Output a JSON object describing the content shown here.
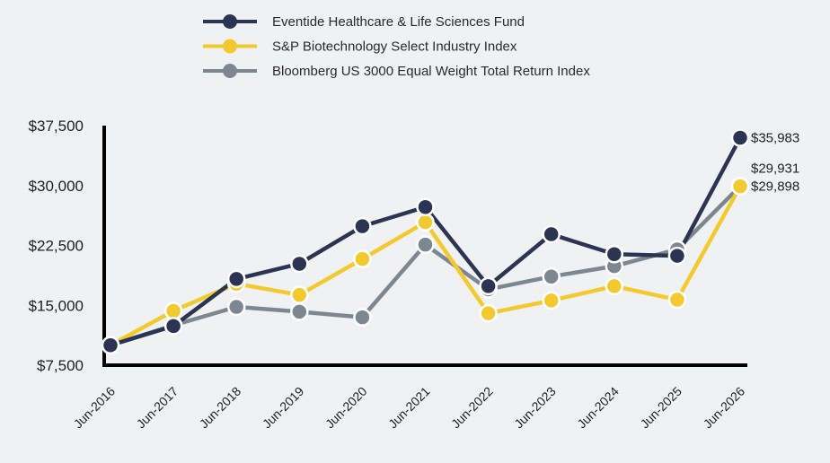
{
  "chart_data": {
    "type": "line",
    "title": "",
    "xlabel": "",
    "ylabel": "",
    "x": [
      "Jun-2016",
      "Jun-2017",
      "Jun-2018",
      "Jun-2019",
      "Jun-2020",
      "Jun-2021",
      "Jun-2022",
      "Jun-2023",
      "Jun-2024",
      "Jun-2025",
      "Jun-2026"
    ],
    "y_ticks": [
      "$7,500",
      "$15,000",
      "$22,500",
      "$30,000",
      "$37,500"
    ],
    "y_tick_values": [
      7500,
      15000,
      22500,
      30000,
      37500
    ],
    "ylim": [
      7500,
      37500
    ],
    "grid": false,
    "legend_position": "top-left",
    "series": [
      {
        "name": "Eventide Healthcare & Life Sciences Fund",
        "color": "#2b3452",
        "values": [
          10000,
          12400,
          18300,
          20200,
          24900,
          27300,
          17400,
          23900,
          21400,
          21200,
          35983
        ],
        "end_label": "$35,983"
      },
      {
        "name": "S&P Biotechnology Select Industry Index",
        "color": "#f2ca30",
        "values": [
          10000,
          14300,
          17700,
          16300,
          20800,
          25400,
          14000,
          15600,
          17400,
          15700,
          29898
        ],
        "end_label": "$29,898"
      },
      {
        "name": "Bloomberg US 3000 Equal Weight Total Return Index",
        "color": "#7c8791",
        "values": [
          10000,
          12500,
          14800,
          14200,
          13500,
          22600,
          17000,
          18600,
          19900,
          22000,
          29931
        ],
        "end_label": "$29,931"
      }
    ]
  }
}
